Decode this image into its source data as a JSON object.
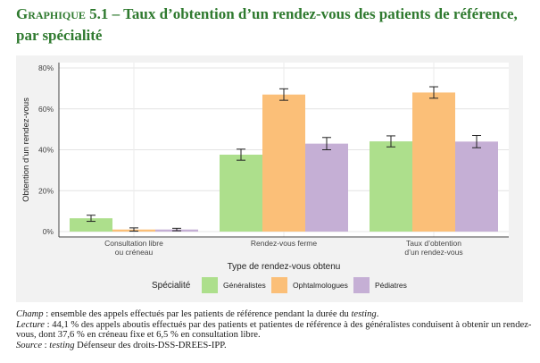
{
  "title": {
    "lead": "Graphique 5.1",
    "rest": " – Taux d’obtention d’un rendez-vous des patients de référence, par spécialité"
  },
  "chart_data": {
    "type": "bar",
    "categories": [
      [
        "Consultation libre",
        "ou créneau"
      ],
      [
        "Rendez-vous ferme"
      ],
      [
        "Taux d’obtention",
        "d’un rendez-vous"
      ]
    ],
    "series": [
      {
        "name": "Généralistes",
        "color": "#addf8c",
        "values": [
          6.5,
          37.6,
          44.1
        ],
        "err": [
          1.5,
          2.7,
          2.7
        ]
      },
      {
        "name": "Ophtalmologues",
        "color": "#fbbf78",
        "values": [
          1.0,
          67.0,
          68.0
        ],
        "err": [
          0.8,
          2.8,
          2.8
        ]
      },
      {
        "name": "Pédiatres",
        "color": "#c5afd5",
        "values": [
          1.0,
          43.0,
          44.0
        ],
        "err": [
          0.6,
          3.0,
          3.0
        ]
      }
    ],
    "xlabel": "Type de rendez-vous obtenu",
    "ylabel": "Obtention d’un rendez-vous",
    "ylim": [
      0,
      80
    ],
    "yticks": [
      "0%",
      "20%",
      "40%",
      "60%",
      "80%"
    ],
    "legend_title": "Spécialité",
    "legend_position": "bottom",
    "grid": true
  },
  "notes": {
    "champ_key": "Champ",
    "champ_a": " : ensemble des appels effectués par les patients de référence pendant la durée du ",
    "champ_b": "testing",
    "champ_c": ".",
    "lecture_key": "Lecture",
    "lecture_text": " : 44,1 % des appels aboutis effectués par des patients et patientes de référence à des généralistes conduisent à obtenir un rendez-vous, dont 37,6 % en créneau fixe et 6,5 % en consultation libre.",
    "source_key": "Source",
    "source_a": " : ",
    "source_b": "testing",
    "source_c": " Défenseur des droits-DSS-DREES-IPP."
  }
}
